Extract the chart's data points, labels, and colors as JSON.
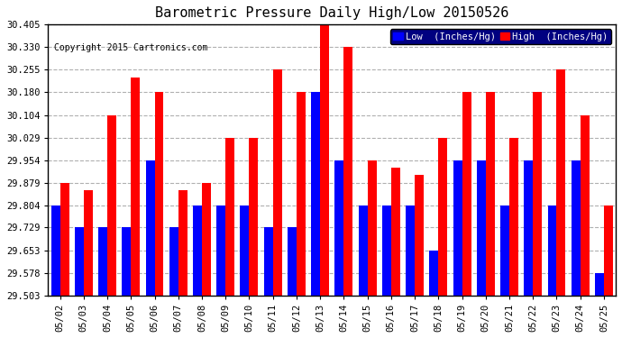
{
  "title": "Barometric Pressure Daily High/Low 20150526",
  "copyright": "Copyright 2015 Cartronics.com",
  "dates": [
    "05/02",
    "05/03",
    "05/04",
    "05/05",
    "05/06",
    "05/07",
    "05/08",
    "05/09",
    "05/10",
    "05/11",
    "05/12",
    "05/13",
    "05/14",
    "05/15",
    "05/16",
    "05/17",
    "05/18",
    "05/19",
    "05/20",
    "05/21",
    "05/22",
    "05/23",
    "05/24",
    "05/25"
  ],
  "low_values": [
    29.804,
    29.729,
    29.729,
    29.729,
    29.954,
    29.729,
    29.804,
    29.804,
    29.804,
    29.729,
    29.729,
    30.18,
    29.954,
    29.804,
    29.804,
    29.804,
    29.653,
    29.954,
    29.954,
    29.804,
    29.954,
    29.804,
    29.954,
    29.578
  ],
  "high_values": [
    29.879,
    29.853,
    30.104,
    30.229,
    30.18,
    29.854,
    29.879,
    30.029,
    30.029,
    30.255,
    30.18,
    30.405,
    30.33,
    29.954,
    29.929,
    29.904,
    30.029,
    30.18,
    30.18,
    30.029,
    30.18,
    30.255,
    30.104,
    29.804
  ],
  "low_color": "#0000ff",
  "high_color": "#ff0000",
  "bg_color": "#ffffff",
  "grid_color": "#b0b0b0",
  "ylim_min": 29.503,
  "ylim_max": 30.405,
  "yticks": [
    29.503,
    29.578,
    29.653,
    29.729,
    29.804,
    29.879,
    29.954,
    30.029,
    30.104,
    30.18,
    30.255,
    30.33,
    30.405
  ],
  "legend_low_label": "Low  (Inches/Hg)",
  "legend_high_label": "High  (Inches/Hg)",
  "legend_bg_color": "#000080",
  "title_fontsize": 11,
  "copyright_fontsize": 7,
  "tick_fontsize": 7.5,
  "bar_width": 0.38
}
